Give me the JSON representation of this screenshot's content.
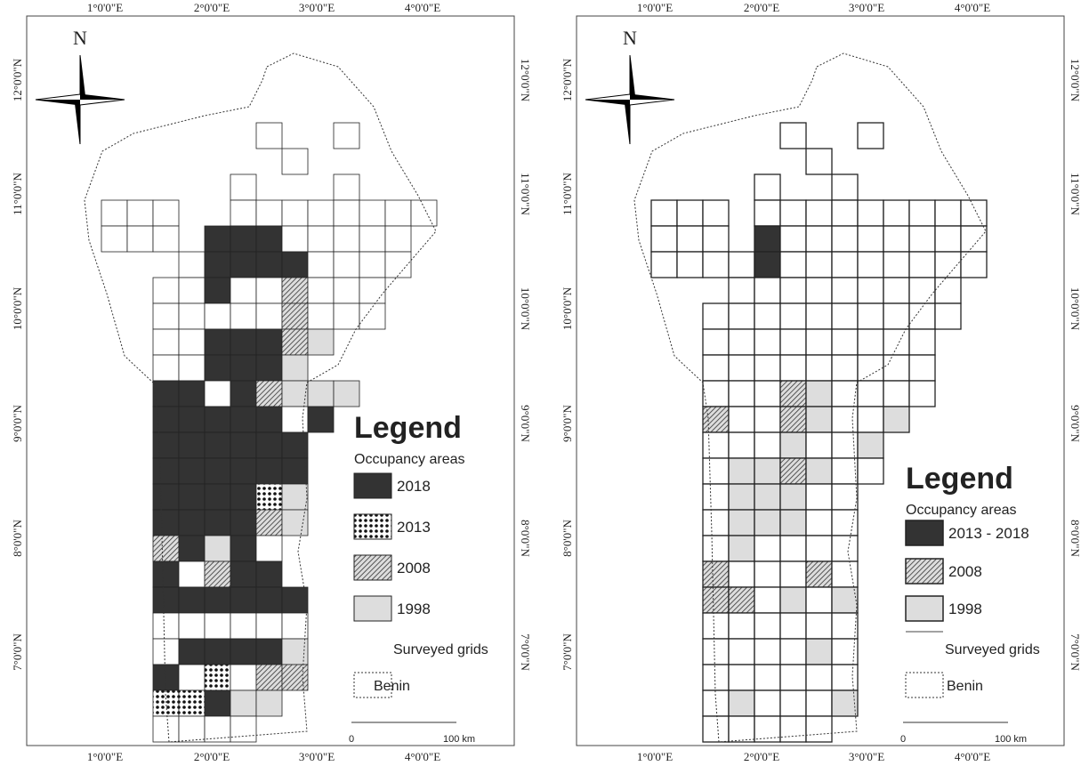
{
  "maps": [
    {
      "north": "N",
      "x_labels_top": [
        "1°0'0\"E",
        "2°0'0\"E",
        "3°0'0\"E",
        "4°0'0\"E"
      ],
      "x_labels_bottom": [
        "1°0'0\"E",
        "2°0'0\"E",
        "3°0'0\"E",
        "4°0'0\"E"
      ],
      "y_labels_left": [
        "12°0'0\"N",
        "11°0'0\"N",
        "10°0'0\"N",
        "9°0'0\"N",
        "8°0'0\"N",
        "7°0'0\"N"
      ],
      "y_labels_right": [
        "12°0'0\"N",
        "11°0'0\"N",
        "10°0'0\"N",
        "9°0'0\"N",
        "8°0'0\"N",
        "7°0'0\"N"
      ],
      "legend": {
        "title": "Legend",
        "subtitle": "Occupancy areas",
        "items": [
          "2018",
          "2013",
          "2008",
          "1998",
          "Surveyed grids",
          "Benin"
        ]
      },
      "scale": {
        "start": "0",
        "end": "100 km"
      }
    },
    {
      "north": "N",
      "x_labels_top": [
        "1°0'0\"E",
        "2°0'0\"E",
        "3°0'0\"E",
        "4°0'0\"E"
      ],
      "x_labels_bottom": [
        "1°0'0\"E",
        "2°0'0\"E",
        "3°0'0\"E",
        "4°0'0\"E"
      ],
      "y_labels_left": [
        "12°0'0\"N",
        "11°0'0\"N",
        "10°0'0\"N",
        "9°0'0\"N",
        "8°0'0\"N",
        "7°0'0\"N"
      ],
      "y_labels_right": [
        "12°0'0\"N",
        "11°0'0\"N",
        "10°0'0\"N",
        "9°0'0\"N",
        "8°0'0\"N",
        "7°0'0\"N"
      ],
      "legend": {
        "title": "Legend",
        "subtitle": "Occupancy areas",
        "items": [
          "2013 - 2018",
          "2008",
          "1998",
          "Surveyed grids",
          "Benin"
        ]
      },
      "scale": {
        "start": "0",
        "end": "100 km"
      }
    }
  ]
}
